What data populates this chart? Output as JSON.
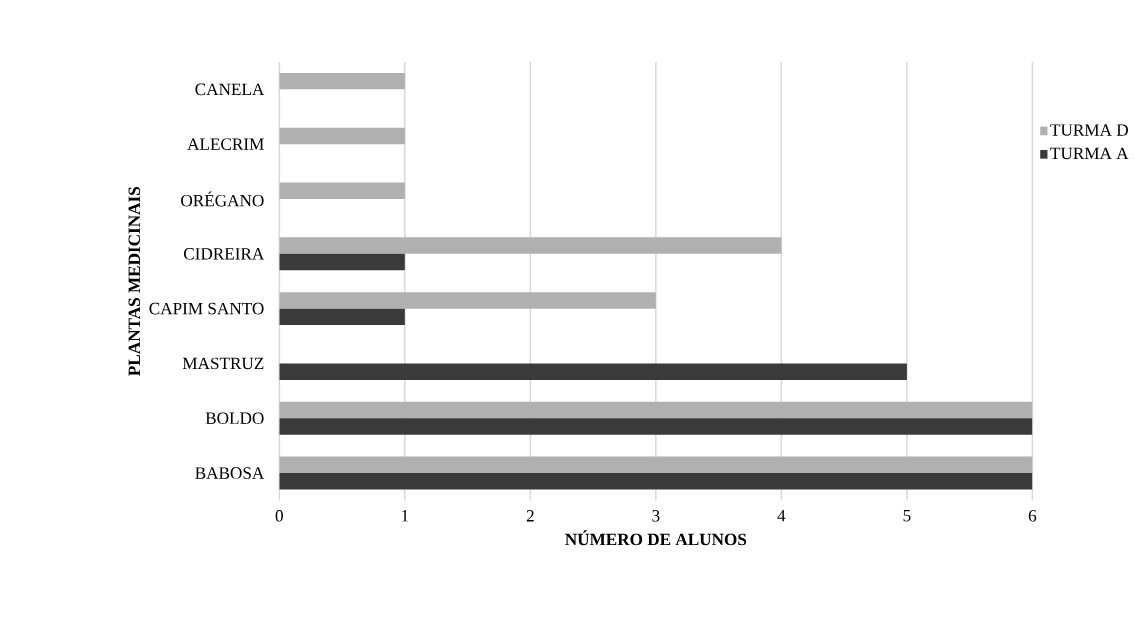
{
  "chart_data": {
    "type": "bar",
    "orientation": "horizontal",
    "xlabel": "NÚMERO DE ALUNOS",
    "ylabel": "PLANTAS MEDICINAIS",
    "categories": [
      "CANELA",
      "ALECRIM",
      "ORÉGANO",
      "CIDREIRA",
      "CAPIM SANTO",
      "MASTRUZ",
      "BOLDO",
      "BABOSA"
    ],
    "series": [
      {
        "name": "TURMA D",
        "color": "#b0b0b0",
        "values": [
          1,
          1,
          1,
          4,
          3,
          0,
          6,
          6
        ]
      },
      {
        "name": "TURMA A",
        "color": "#3a3a3a",
        "values": [
          0,
          0,
          0,
          1,
          1,
          5,
          6,
          6
        ]
      }
    ],
    "xlim": [
      0,
      6
    ],
    "xticks": [
      0,
      1,
      2,
      3,
      4,
      5,
      6
    ],
    "grid": "x",
    "legend": "right"
  }
}
